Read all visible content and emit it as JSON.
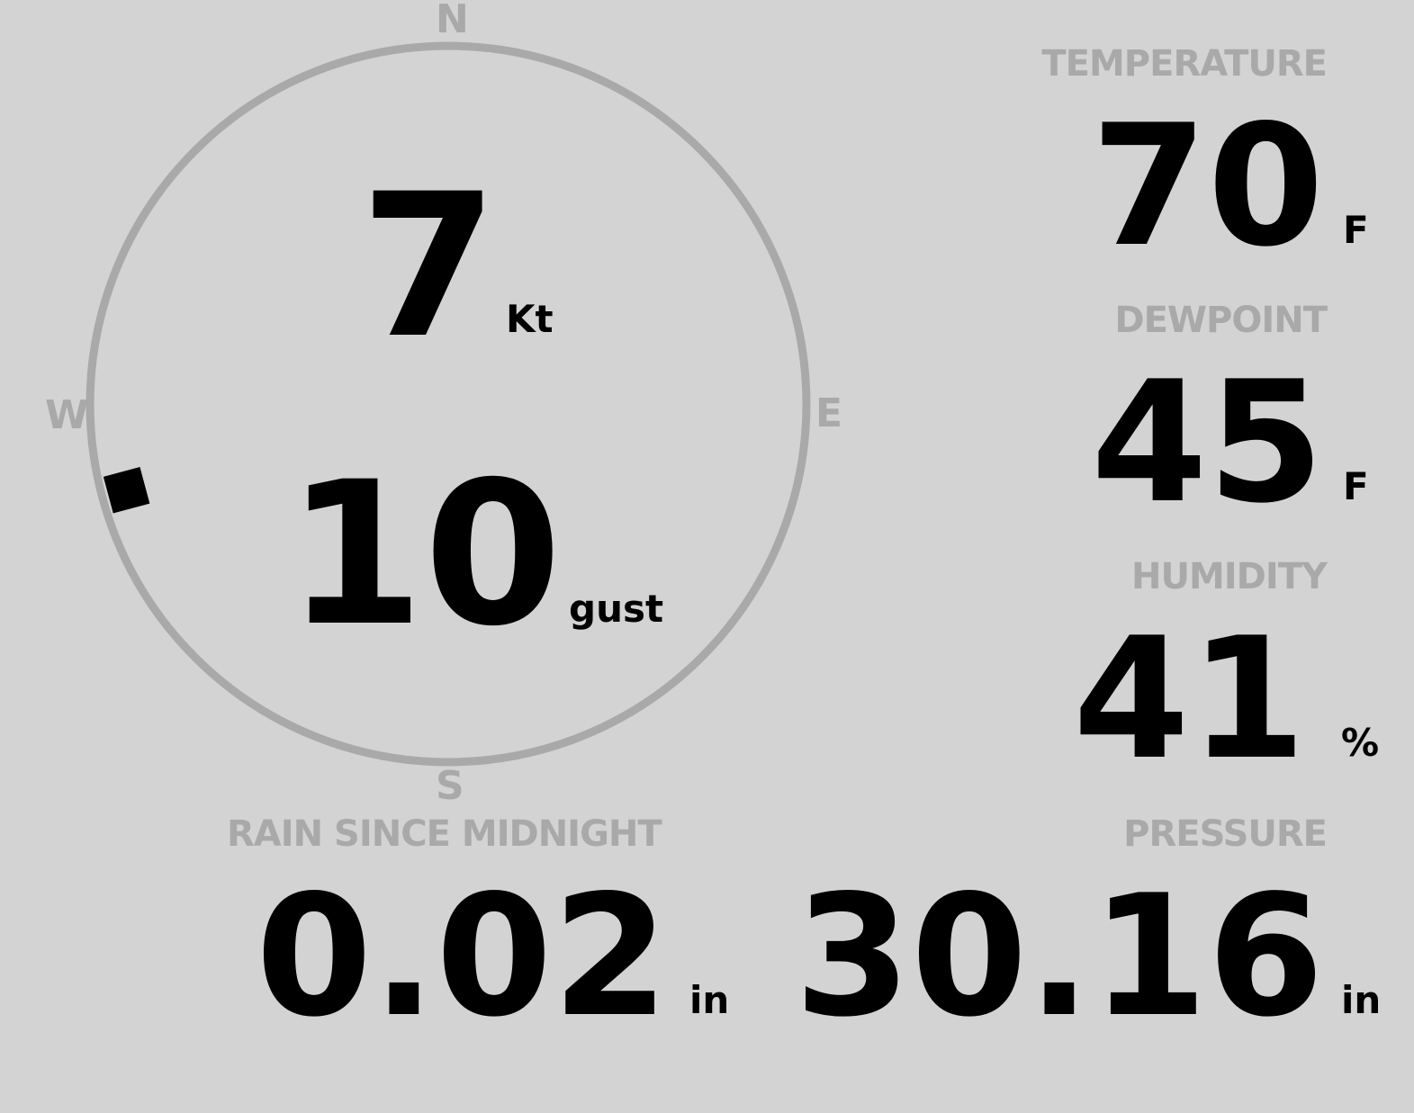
{
  "wind": {
    "speed": "7",
    "speed_unit": "Kt",
    "gust": "10",
    "gust_label": "gust",
    "direction_degrees": 255,
    "compass": {
      "n": "N",
      "e": "E",
      "s": "S",
      "w": "W"
    }
  },
  "temperature": {
    "label": "TEMPERATURE",
    "value": "70",
    "unit": "F"
  },
  "dewpoint": {
    "label": "DEWPOINT",
    "value": "45",
    "unit": "F"
  },
  "humidity": {
    "label": "HUMIDITY",
    "value": "41",
    "unit": "%"
  },
  "rain": {
    "label": "RAIN SINCE MIDNIGHT",
    "value": "0.02",
    "unit": "in"
  },
  "pressure": {
    "label": "PRESSURE",
    "value": "30.16",
    "unit": "in"
  },
  "colors": {
    "background": "#d3d3d3",
    "label": "#a9a9a9",
    "value": "#000000"
  }
}
